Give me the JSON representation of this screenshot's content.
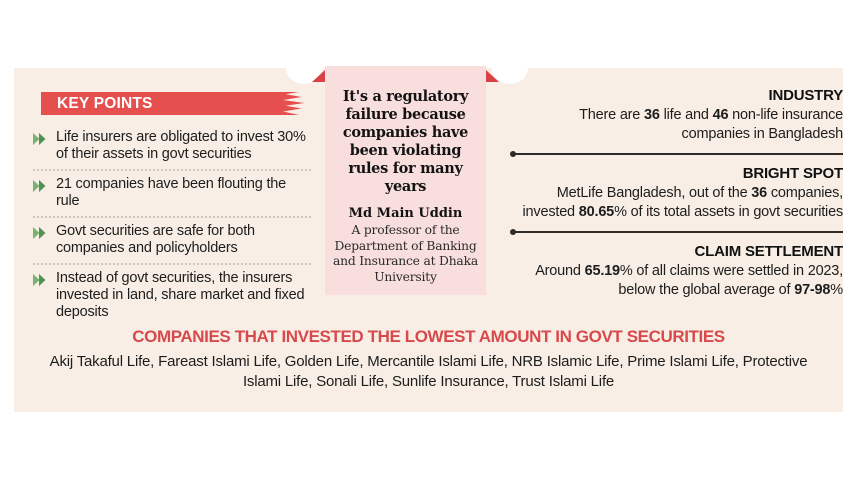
{
  "colors": {
    "accent_red": "#e5504e",
    "heading_red": "#d8494c",
    "panel_cream": "#f8eee5",
    "quote_pink": "#f9dede",
    "fold_triangle_red": "#d64245",
    "chevron_green_light": "#7ab36f",
    "chevron_green_dark": "#4e9254",
    "text_dark": "#1d1d1d"
  },
  "key_points": {
    "title": "KEY POINTS",
    "items": [
      "Life insurers are obligated to invest 30% of their assets in govt securities",
      "21 companies have been flouting the rule",
      "Govt securities are safe for both companies and policyholders",
      "Instead of govt securities, the insurers invested in land, share market and fixed deposits"
    ]
  },
  "quote": {
    "text": "It's a regulatory failure because companies have been violating rules for many years",
    "author": "Md Main Uddin",
    "author_title": "A professor of the Department of Banking and Insurance at Dhaka University"
  },
  "stats": {
    "items": [
      {
        "heading": "INDUSTRY",
        "segments": [
          {
            "t": "There are "
          },
          {
            "t": "36",
            "b": true
          },
          {
            "t": " life and "
          },
          {
            "t": "46",
            "b": true
          },
          {
            "t": " non-life insurance companies in Bangladesh"
          }
        ]
      },
      {
        "heading": "BRIGHT SPOT",
        "segments": [
          {
            "t": "MetLife Bangladesh, out of the "
          },
          {
            "t": "36",
            "b": true
          },
          {
            "t": " companies, invested "
          },
          {
            "t": "80.65",
            "b": true
          },
          {
            "t": "% of its total assets in govt securities"
          }
        ]
      },
      {
        "heading": "CLAIM SETTLEMENT",
        "segments": [
          {
            "t": "Around "
          },
          {
            "t": "65.19",
            "b": true
          },
          {
            "t": "% of all claims were settled in 2023, below the global average of "
          },
          {
            "t": "97-98",
            "b": true
          },
          {
            "t": "%"
          }
        ]
      }
    ]
  },
  "lowest_invested": {
    "heading": "COMPANIES THAT INVESTED THE LOWEST AMOUNT IN GOVT SECURITIES",
    "companies": "Akij Takaful Life, Fareast Islami Life, Golden Life, Mercantile Islami Life, NRB Islamic Life, Prime Islami Life, Protective Islami Life, Sonali Life, Sunlife Insurance, Trust Islami Life"
  }
}
